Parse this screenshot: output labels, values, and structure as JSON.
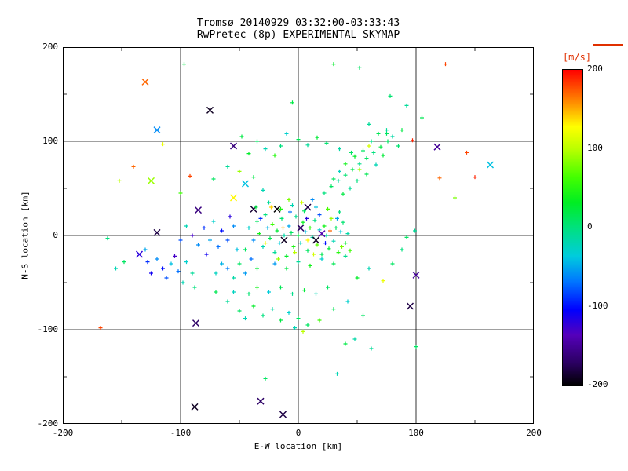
{
  "figure": {
    "background": "#ffffff",
    "axis_color": "#000000",
    "colorbar_label_color": "#e03000"
  },
  "chart_data": {
    "type": "scatter",
    "title_lines": [
      "Tromsø 20140929 03:32:00-03:33:43",
      "RwPretec (8p) EXPERIMENTAL SKYMAP"
    ],
    "xlabel": "E-W location [km]",
    "ylabel": "N-S location [km]",
    "xlim": [
      -200,
      200
    ],
    "ylim": [
      -200,
      200
    ],
    "xticks": [
      -200,
      -100,
      0,
      100,
      200
    ],
    "yticks": [
      -200,
      -100,
      0,
      100,
      200
    ],
    "xminor": [
      -150,
      -50,
      50,
      150
    ],
    "yminor": [
      -150,
      -50,
      50,
      150
    ],
    "grid": true,
    "vmin": -200,
    "vmax": 200,
    "colorbar": {
      "label": "[m/s]",
      "ticks": [
        200,
        100,
        0,
        -100,
        -200
      ]
    },
    "colormap": [
      [
        0.0,
        "#000000"
      ],
      [
        0.07,
        "#2a0060"
      ],
      [
        0.16,
        "#5500bb"
      ],
      [
        0.24,
        "#0000ff"
      ],
      [
        0.33,
        "#0077ff"
      ],
      [
        0.41,
        "#00ccdd"
      ],
      [
        0.5,
        "#00e17e"
      ],
      [
        0.58,
        "#00ee22"
      ],
      [
        0.66,
        "#44ff00"
      ],
      [
        0.75,
        "#bbff00"
      ],
      [
        0.82,
        "#ffff00"
      ],
      [
        0.9,
        "#ff8800"
      ],
      [
        1.0,
        "#ff0000"
      ]
    ],
    "marker_key": {
      "0": "plus",
      "1": "x-cross"
    },
    "points": [
      [
        -130,
        163,
        170,
        1
      ],
      [
        -97,
        182,
        20,
        0
      ],
      [
        30,
        182,
        30,
        0
      ],
      [
        52,
        178,
        10,
        0
      ],
      [
        125,
        182,
        180,
        0
      ],
      [
        -75,
        133,
        -190,
        1
      ],
      [
        -120,
        112,
        -60,
        1
      ],
      [
        -115,
        97,
        120,
        0
      ],
      [
        150,
        62,
        190,
        0
      ],
      [
        120,
        61,
        170,
        0
      ],
      [
        133,
        40,
        80,
        0
      ],
      [
        -140,
        73,
        170,
        0
      ],
      [
        -152,
        58,
        100,
        0
      ],
      [
        143,
        88,
        180,
        0
      ],
      [
        118,
        94,
        -150,
        1
      ],
      [
        97,
        101,
        190,
        0
      ],
      [
        163,
        75,
        -40,
        1
      ],
      [
        -5,
        141,
        20,
        0
      ],
      [
        78,
        148,
        5,
        0
      ],
      [
        92,
        138,
        -10,
        0
      ],
      [
        60,
        118,
        -10,
        0
      ],
      [
        75,
        108,
        10,
        0
      ],
      [
        88,
        112,
        20,
        0
      ],
      [
        105,
        125,
        15,
        0
      ],
      [
        68,
        108,
        15,
        0
      ],
      [
        75,
        112,
        -10,
        0
      ],
      [
        62,
        100,
        -5,
        0
      ],
      [
        55,
        90,
        10,
        0
      ],
      [
        -55,
        95,
        -160,
        1
      ],
      [
        -42,
        87,
        30,
        0
      ],
      [
        -35,
        100,
        10,
        0
      ],
      [
        -28,
        92,
        -20,
        0
      ],
      [
        -20,
        85,
        50,
        0
      ],
      [
        -15,
        95,
        0,
        0
      ],
      [
        -48,
        105,
        20,
        0
      ],
      [
        -10,
        108,
        -30,
        0
      ],
      [
        0,
        102,
        15,
        0
      ],
      [
        8,
        96,
        -10,
        0
      ],
      [
        16,
        104,
        25,
        0
      ],
      [
        24,
        98,
        5,
        0
      ],
      [
        35,
        92,
        -15,
        0
      ],
      [
        45,
        88,
        10,
        0
      ],
      [
        22,
        45,
        0,
        0
      ],
      [
        28,
        52,
        10,
        0
      ],
      [
        34,
        58,
        -10,
        0
      ],
      [
        40,
        64,
        5,
        0
      ],
      [
        46,
        70,
        15,
        0
      ],
      [
        52,
        76,
        -5,
        0
      ],
      [
        58,
        82,
        10,
        0
      ],
      [
        64,
        88,
        0,
        0
      ],
      [
        70,
        94,
        20,
        0
      ],
      [
        76,
        100,
        10,
        0
      ],
      [
        80,
        105,
        -15,
        0
      ],
      [
        85,
        95,
        5,
        0
      ],
      [
        72,
        85,
        25,
        0
      ],
      [
        66,
        75,
        -20,
        0
      ],
      [
        58,
        65,
        15,
        0
      ],
      [
        50,
        58,
        0,
        0
      ],
      [
        44,
        50,
        -10,
        0
      ],
      [
        38,
        44,
        20,
        0
      ],
      [
        48,
        84,
        30,
        0
      ],
      [
        40,
        76,
        40,
        0
      ],
      [
        35,
        68,
        -25,
        0
      ],
      [
        30,
        60,
        10,
        0
      ],
      [
        60,
        95,
        110,
        0
      ],
      [
        52,
        70,
        90,
        0
      ],
      [
        -135,
        -20,
        -120,
        1
      ],
      [
        -128,
        -28,
        -90,
        0
      ],
      [
        -120,
        -25,
        -60,
        0
      ],
      [
        -115,
        -35,
        -100,
        0
      ],
      [
        -108,
        -30,
        -40,
        0
      ],
      [
        -102,
        -38,
        -70,
        0
      ],
      [
        -95,
        -28,
        -30,
        0
      ],
      [
        -90,
        -40,
        -10,
        0
      ],
      [
        -112,
        -45,
        -80,
        0
      ],
      [
        -105,
        -22,
        -130,
        0
      ],
      [
        -98,
        -50,
        -20,
        0
      ],
      [
        -88,
        -55,
        0,
        0
      ],
      [
        -125,
        -40,
        -110,
        0
      ],
      [
        -130,
        -15,
        -50,
        0
      ],
      [
        -148,
        -28,
        10,
        0
      ],
      [
        -155,
        -35,
        -20,
        0
      ],
      [
        -162,
        -3,
        0,
        0
      ],
      [
        -168,
        -98,
        180,
        0
      ],
      [
        -120,
        3,
        -180,
        1
      ],
      [
        -85,
        27,
        -160,
        1
      ],
      [
        -55,
        40,
        130,
        1
      ],
      [
        -45,
        55,
        -40,
        1
      ],
      [
        -38,
        62,
        20,
        0
      ],
      [
        -30,
        48,
        -20,
        0
      ],
      [
        -72,
        60,
        10,
        0
      ],
      [
        -92,
        63,
        180,
        0
      ],
      [
        -60,
        73,
        -10,
        0
      ],
      [
        -50,
        68,
        90,
        0
      ],
      [
        -125,
        58,
        90,
        1
      ],
      [
        -100,
        45,
        60,
        0
      ],
      [
        -38,
        28,
        -185,
        1
      ],
      [
        -65,
        5,
        -100,
        0
      ],
      [
        -60,
        -5,
        -80,
        0
      ],
      [
        -55,
        10,
        -60,
        0
      ],
      [
        -52,
        -15,
        -40,
        0
      ],
      [
        -58,
        20,
        -120,
        0
      ],
      [
        -68,
        -12,
        -70,
        0
      ],
      [
        -75,
        -5,
        -50,
        0
      ],
      [
        -80,
        8,
        -90,
        0
      ],
      [
        -72,
        15,
        -30,
        0
      ],
      [
        -78,
        -20,
        -110,
        0
      ],
      [
        -85,
        -10,
        -60,
        0
      ],
      [
        -90,
        0,
        -130,
        0
      ],
      [
        -95,
        10,
        -20,
        0
      ],
      [
        -100,
        -5,
        -80,
        0
      ],
      [
        -65,
        -30,
        -45,
        0
      ],
      [
        -70,
        -40,
        -25,
        0
      ],
      [
        -60,
        -35,
        -65,
        0
      ],
      [
        -55,
        -45,
        -15,
        0
      ],
      [
        -50,
        -30,
        10,
        0
      ],
      [
        -45,
        -40,
        -55,
        0
      ],
      [
        -42,
        8,
        -30,
        0
      ],
      [
        -38,
        -5,
        -60,
        0
      ],
      [
        -35,
        15,
        10,
        0
      ],
      [
        -33,
        2,
        40,
        0
      ],
      [
        -30,
        -12,
        -20,
        0
      ],
      [
        -28,
        22,
        0,
        0
      ],
      [
        -26,
        8,
        -45,
        0
      ],
      [
        -24,
        -3,
        15,
        0
      ],
      [
        -22,
        12,
        60,
        0
      ],
      [
        -20,
        -18,
        -10,
        0
      ],
      [
        -18,
        5,
        25,
        0
      ],
      [
        -16,
        -8,
        -35,
        0
      ],
      [
        -14,
        18,
        5,
        0
      ],
      [
        -12,
        0,
        -15,
        0
      ],
      [
        -10,
        -22,
        30,
        0
      ],
      [
        -8,
        10,
        -50,
        0
      ],
      [
        -6,
        3,
        10,
        0
      ],
      [
        -4,
        -12,
        45,
        0
      ],
      [
        -2,
        20,
        -5,
        0
      ],
      [
        0,
        0,
        20,
        0
      ],
      [
        2,
        -8,
        -25,
        0
      ],
      [
        4,
        14,
        35,
        0
      ],
      [
        6,
        4,
        -40,
        0
      ],
      [
        8,
        -16,
        10,
        0
      ],
      [
        10,
        8,
        55,
        0
      ],
      [
        12,
        -2,
        -15,
        0
      ],
      [
        14,
        16,
        0,
        0
      ],
      [
        16,
        -10,
        70,
        0
      ],
      [
        18,
        6,
        -30,
        0
      ],
      [
        20,
        -20,
        15,
        0
      ],
      [
        22,
        10,
        40,
        0
      ],
      [
        24,
        0,
        -10,
        0
      ],
      [
        26,
        -14,
        25,
        0
      ],
      [
        28,
        18,
        90,
        0
      ],
      [
        30,
        -6,
        -20,
        0
      ],
      [
        32,
        8,
        10,
        0
      ],
      [
        34,
        -18,
        50,
        0
      ],
      [
        36,
        4,
        -35,
        0
      ],
      [
        38,
        14,
        5,
        0
      ],
      [
        40,
        -8,
        30,
        0
      ],
      [
        42,
        2,
        -15,
        0
      ],
      [
        44,
        -16,
        60,
        0
      ],
      [
        -40,
        -25,
        -70,
        0
      ],
      [
        -36,
        30,
        20,
        0
      ],
      [
        -25,
        35,
        -10,
        0
      ],
      [
        -15,
        28,
        45,
        0
      ],
      [
        -5,
        32,
        -20,
        0
      ],
      [
        5,
        26,
        10,
        0
      ],
      [
        15,
        30,
        -40,
        0
      ],
      [
        25,
        28,
        65,
        0
      ],
      [
        35,
        25,
        0,
        0
      ],
      [
        -45,
        -15,
        10,
        0
      ],
      [
        -20,
        -30,
        -55,
        0
      ],
      [
        -10,
        -35,
        20,
        0
      ],
      [
        0,
        -28,
        -10,
        0
      ],
      [
        10,
        -32,
        40,
        0
      ],
      [
        20,
        -25,
        -30,
        0
      ],
      [
        30,
        -30,
        15,
        0
      ],
      [
        40,
        -22,
        -5,
        0
      ],
      [
        -35,
        -35,
        25,
        0
      ],
      [
        3,
        35,
        110,
        0
      ],
      [
        12,
        38,
        -60,
        0
      ],
      [
        -8,
        38,
        80,
        0
      ],
      [
        8,
        -5,
        130,
        0
      ],
      [
        -3,
        -18,
        100,
        0
      ],
      [
        18,
        22,
        -80,
        0
      ],
      [
        -28,
        -8,
        120,
        0
      ],
      [
        33,
        18,
        -50,
        0
      ],
      [
        -13,
        8,
        150,
        0
      ],
      [
        23,
        -8,
        -100,
        0
      ],
      [
        7,
        18,
        -120,
        0
      ],
      [
        -17,
        -25,
        90,
        0
      ],
      [
        27,
        5,
        170,
        0
      ],
      [
        -32,
        18,
        -90,
        0
      ],
      [
        13,
        -20,
        110,
        0
      ],
      [
        -7,
        25,
        -70,
        0
      ],
      [
        37,
        -12,
        80,
        0
      ],
      [
        -23,
        30,
        140,
        0
      ],
      [
        2,
        8,
        -170,
        1
      ],
      [
        -12,
        -5,
        -190,
        1
      ],
      [
        20,
        2,
        -140,
        1
      ],
      [
        -18,
        28,
        -200,
        1
      ],
      [
        8,
        30,
        -180,
        1
      ],
      [
        15,
        -5,
        -190,
        1
      ],
      [
        -87,
        -93,
        -170,
        1
      ],
      [
        -50,
        -80,
        10,
        0
      ],
      [
        -45,
        -88,
        -20,
        0
      ],
      [
        -38,
        -75,
        30,
        0
      ],
      [
        -30,
        -85,
        0,
        0
      ],
      [
        -22,
        -78,
        -15,
        0
      ],
      [
        -15,
        -90,
        20,
        0
      ],
      [
        -8,
        -82,
        -30,
        0
      ],
      [
        0,
        -88,
        10,
        0
      ],
      [
        -60,
        -70,
        -10,
        0
      ],
      [
        -70,
        -60,
        15,
        0
      ],
      [
        -55,
        -60,
        -25,
        0
      ],
      [
        -42,
        -62,
        5,
        0
      ],
      [
        -35,
        -55,
        40,
        0
      ],
      [
        -25,
        -60,
        -35,
        0
      ],
      [
        -15,
        -55,
        15,
        0
      ],
      [
        -5,
        -62,
        -5,
        0
      ],
      [
        5,
        -58,
        25,
        0
      ],
      [
        15,
        -62,
        -20,
        0
      ],
      [
        25,
        -55,
        10,
        0
      ],
      [
        4,
        -102,
        100,
        0
      ],
      [
        -3,
        -98,
        -20,
        0
      ],
      [
        8,
        -95,
        10,
        0
      ],
      [
        18,
        -90,
        60,
        0
      ],
      [
        30,
        -78,
        15,
        0
      ],
      [
        42,
        -70,
        -30,
        0
      ],
      [
        55,
        -85,
        10,
        0
      ],
      [
        95,
        -75,
        -180,
        1
      ],
      [
        100,
        -42,
        -150,
        1
      ],
      [
        72,
        -48,
        120,
        0
      ],
      [
        80,
        -30,
        10,
        0
      ],
      [
        60,
        -35,
        -20,
        0
      ],
      [
        50,
        -45,
        30,
        0
      ],
      [
        88,
        -15,
        0,
        0
      ],
      [
        92,
        -2,
        10,
        0
      ],
      [
        99,
        5,
        -10,
        0
      ],
      [
        -88,
        -182,
        -190,
        1
      ],
      [
        -32,
        -176,
        -170,
        1
      ],
      [
        -13,
        -190,
        -180,
        1
      ],
      [
        -28,
        -152,
        10,
        0
      ],
      [
        33,
        -147,
        -20,
        0
      ],
      [
        100,
        -118,
        10,
        0
      ],
      [
        62,
        -120,
        -10,
        0
      ],
      [
        40,
        -115,
        20,
        0
      ],
      [
        48,
        -110,
        -15,
        0
      ]
    ]
  }
}
